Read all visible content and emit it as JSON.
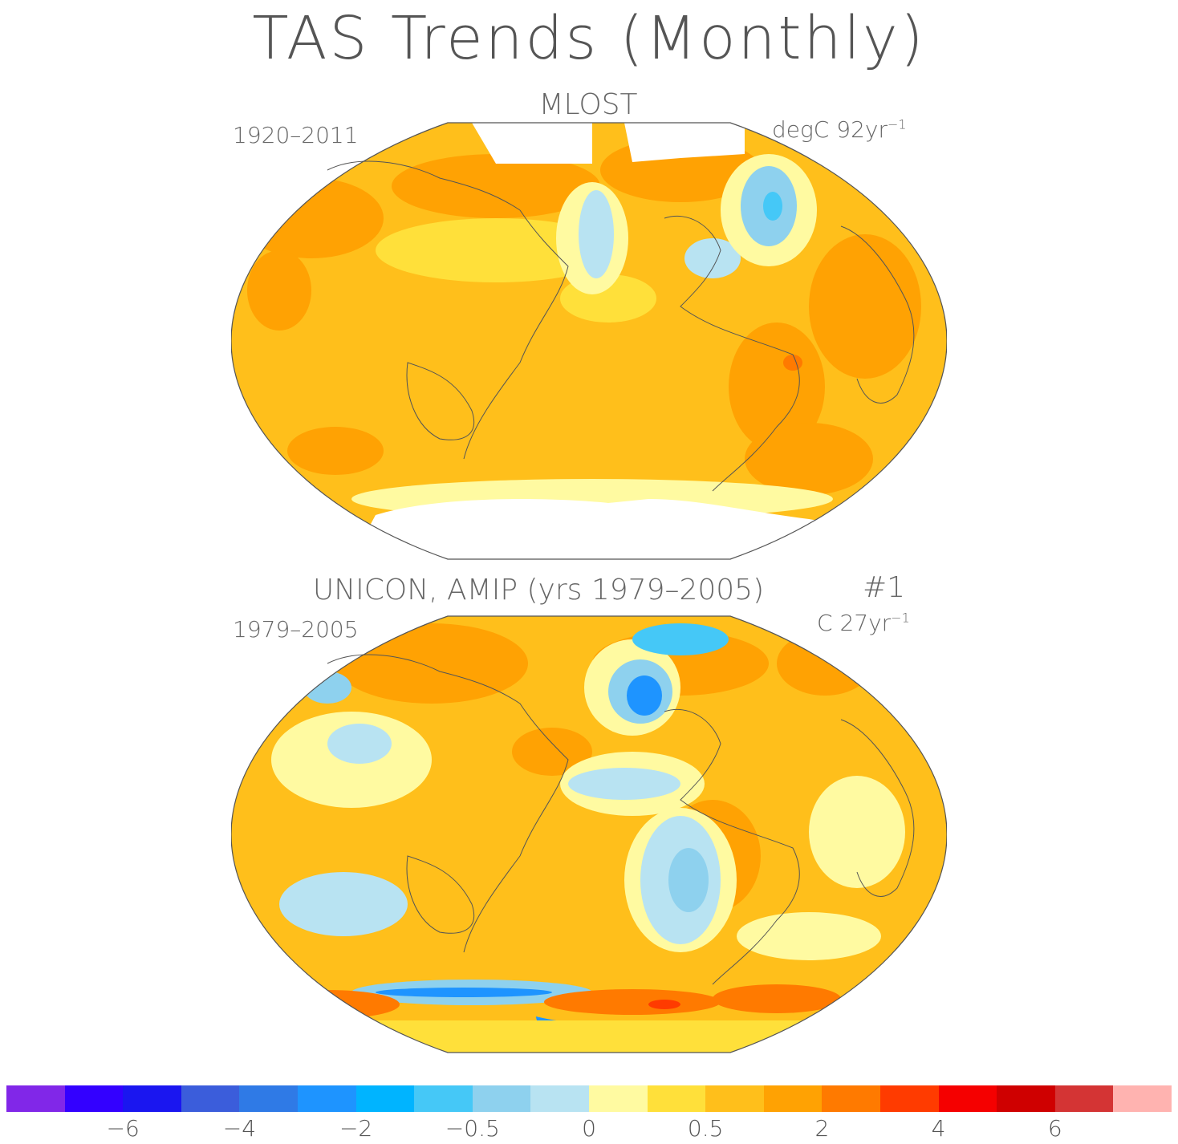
{
  "title": "TAS Trends (Monthly)",
  "panels": [
    {
      "title": "MLOST",
      "period": "1920–2011",
      "units": "degC 92yr",
      "units_exp": "−1",
      "run": ""
    },
    {
      "title": "UNICON, AMIP (yrs 1979–2005)",
      "period": "1979–2005",
      "units": "C 27yr",
      "units_exp": "−1",
      "run": "#1"
    }
  ],
  "colorbar": {
    "colors": [
      "#8127e8",
      "#3300ff",
      "#1a16f0",
      "#3b5ddb",
      "#2f7ae6",
      "#1e94ff",
      "#00b4ff",
      "#45c8f7",
      "#8ed1ee",
      "#b8e3f2",
      "#fffaa1",
      "#ffe03a",
      "#ffbf1b",
      "#ffa203",
      "#ff7a00",
      "#ff3b00",
      "#f50000",
      "#cf0000",
      "#d43434",
      "#ffb3b0"
    ],
    "labels": [
      "−6",
      "−4",
      "−2",
      "−0.5",
      "0",
      "0.5",
      "2",
      "4",
      "6"
    ]
  }
}
